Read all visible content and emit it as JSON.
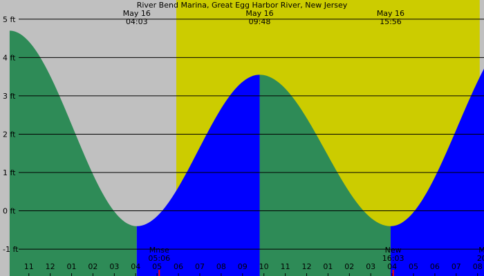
{
  "chart_data": {
    "type": "area",
    "title": "River Bend Marina, Great Egg Harbor River, New Jersey",
    "y_unit": "ft",
    "ylim": [
      -1.7,
      5.5
    ],
    "y_ticks": [
      {
        "value": 5,
        "label": "5 ft"
      },
      {
        "value": 4,
        "label": "4 ft"
      },
      {
        "value": 3,
        "label": "3 ft"
      },
      {
        "value": 2,
        "label": "2 ft"
      },
      {
        "value": 1,
        "label": "1 ft"
      },
      {
        "value": 0,
        "label": "0 ft"
      },
      {
        "value": -1,
        "label": "-1 ft"
      }
    ],
    "x_unit": "hour of day",
    "xlim": [
      21.65,
      44.3
    ],
    "x_ticks": [
      {
        "hour": 23,
        "label": "11"
      },
      {
        "hour": 24,
        "label": "12"
      },
      {
        "hour": 25,
        "label": "01"
      },
      {
        "hour": 26,
        "label": "02"
      },
      {
        "hour": 27,
        "label": "03"
      },
      {
        "hour": 28,
        "label": "04"
      },
      {
        "hour": 29,
        "label": "05"
      },
      {
        "hour": 30,
        "label": "06"
      },
      {
        "hour": 31,
        "label": "07"
      },
      {
        "hour": 32,
        "label": "08"
      },
      {
        "hour": 33,
        "label": "09"
      },
      {
        "hour": 34,
        "label": "10"
      },
      {
        "hour": 35,
        "label": "11"
      },
      {
        "hour": 36,
        "label": "12"
      },
      {
        "hour": 37,
        "label": "01"
      },
      {
        "hour": 38,
        "label": "02"
      },
      {
        "hour": 39,
        "label": "03"
      },
      {
        "hour": 40,
        "label": "04"
      },
      {
        "hour": 41,
        "label": "05"
      },
      {
        "hour": 42,
        "label": "06"
      },
      {
        "hour": 43,
        "label": "07"
      },
      {
        "hour": 44,
        "label": "08"
      }
    ],
    "daylight_periods": [
      {
        "start_hour": 29.9,
        "end_hour": 44.1
      }
    ],
    "tide_extremes": [
      {
        "hour": 22.1,
        "height": 4.7,
        "kind": "high"
      },
      {
        "hour": 28.05,
        "height": -0.4,
        "kind": "low",
        "date_label": "May 16",
        "time_label": "04:03"
      },
      {
        "hour": 33.8,
        "height": 3.55,
        "kind": "high",
        "date_label": "May 16",
        "time_label": "09:48"
      },
      {
        "hour": 39.93,
        "height": -0.4,
        "kind": "low",
        "date_label": "May 16",
        "time_label": "15:56"
      },
      {
        "hour": 46.2,
        "height": 4.8,
        "kind": "high",
        "date_label": "M",
        "time_label": "2"
      }
    ],
    "events": [
      {
        "label": "Mnse",
        "time_label": "05:06",
        "hour": 29.1
      },
      {
        "label": "New",
        "time_label": "16:03",
        "hour": 40.05
      },
      {
        "label": "Mnst",
        "time_label": "20:29",
        "hour": 44.48
      }
    ],
    "colors": {
      "night": "#c0c0c0",
      "day": "#cccc00",
      "falling": "#2e8b57",
      "rising": "#0000ff",
      "grid": "#000000",
      "text": "#000000",
      "moon_text": "#000000",
      "tick_marker": "#ff0000"
    }
  }
}
